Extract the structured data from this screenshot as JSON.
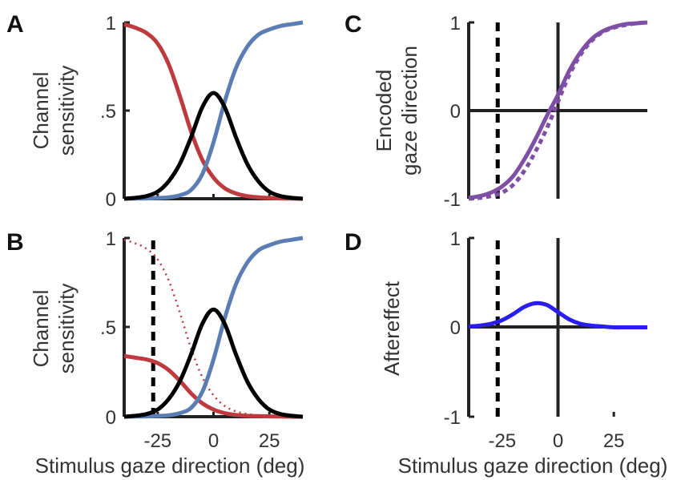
{
  "figure": {
    "panels": {
      "A": {
        "letter": "A",
        "ylabel_line1": "Channel",
        "ylabel_line2": "sensitivity",
        "yticks": [
          "0",
          ".5",
          "1"
        ]
      },
      "B": {
        "letter": "B",
        "ylabel_line1": "Channel",
        "ylabel_line2": "sensitivity",
        "yticks": [
          "0",
          ".5",
          "1"
        ],
        "xticks": [
          "-25",
          "0",
          "25"
        ],
        "xlabel": "Stimulus gaze direction (deg)"
      },
      "C": {
        "letter": "C",
        "ylabel_line1": "Encoded",
        "ylabel_line2": "gaze direction",
        "yticks": [
          "-1",
          "0",
          "1"
        ]
      },
      "D": {
        "letter": "D",
        "ylabel_line1": "Aftereffect",
        "yticks": [
          "-1",
          "0",
          "1"
        ],
        "xticks": [
          "-25",
          "0",
          "25"
        ],
        "xlabel": "Stimulus gaze direction (deg)"
      }
    },
    "colors": {
      "left_channel": "#be3a3e",
      "right_channel": "#5b7db3",
      "center_channel": "#000000",
      "encoded": "#7f4fa6",
      "aftereffect": "#2a1df0",
      "axis": "#222222"
    }
  },
  "chart_data": [
    {
      "panel": "A",
      "type": "line",
      "xlim": [
        -40,
        40
      ],
      "ylim": [
        0,
        1
      ],
      "series": [
        {
          "style": "solid",
          "color": "#be3a3e",
          "x": [
            -40,
            -35,
            -30,
            -25,
            -20,
            -15,
            -10,
            -5,
            0,
            5,
            10,
            15,
            20,
            25,
            30,
            35,
            40
          ],
          "y": [
            0.99,
            0.97,
            0.94,
            0.88,
            0.76,
            0.58,
            0.38,
            0.22,
            0.12,
            0.06,
            0.03,
            0.015,
            0.008,
            0.004,
            0.002,
            0.001,
            0.0
          ]
        },
        {
          "style": "solid",
          "color": "#5b7db3",
          "x": [
            -40,
            -35,
            -30,
            -25,
            -20,
            -15,
            -10,
            -5,
            0,
            5,
            10,
            15,
            20,
            25,
            30,
            35,
            40
          ],
          "y": [
            0.0,
            0.001,
            0.002,
            0.004,
            0.008,
            0.02,
            0.05,
            0.14,
            0.32,
            0.55,
            0.74,
            0.86,
            0.93,
            0.96,
            0.98,
            0.99,
            1.0
          ]
        },
        {
          "style": "solid",
          "color": "#000000",
          "x": [
            -40,
            -35,
            -30,
            -25,
            -20,
            -15,
            -10,
            -5,
            0,
            5,
            10,
            15,
            20,
            25,
            30,
            35,
            40
          ],
          "y": [
            0.0,
            0.005,
            0.015,
            0.04,
            0.1,
            0.2,
            0.35,
            0.52,
            0.6,
            0.52,
            0.35,
            0.2,
            0.1,
            0.04,
            0.015,
            0.005,
            0.0
          ]
        }
      ]
    },
    {
      "panel": "B",
      "type": "line",
      "xlim": [
        -40,
        40
      ],
      "ylim": [
        0,
        1
      ],
      "vline_x": -27,
      "series": [
        {
          "style": "solid",
          "color": "#be3a3e",
          "x": [
            -40,
            -35,
            -30,
            -25,
            -20,
            -15,
            -10,
            -5,
            0,
            5,
            10,
            15,
            20,
            25,
            30,
            35,
            40
          ],
          "y": [
            0.34,
            0.33,
            0.32,
            0.3,
            0.26,
            0.2,
            0.13,
            0.075,
            0.04,
            0.02,
            0.01,
            0.005,
            0.003,
            0.002,
            0.001,
            0.0,
            0.0
          ]
        },
        {
          "style": "dotted",
          "color": "#be3a3e",
          "x": [
            -40,
            -35,
            -30,
            -25,
            -20,
            -15,
            -10,
            -5,
            0,
            5,
            10,
            15,
            20,
            25,
            30,
            35,
            40
          ],
          "y": [
            0.99,
            0.97,
            0.94,
            0.88,
            0.76,
            0.58,
            0.38,
            0.22,
            0.12,
            0.06,
            0.03,
            0.015,
            0.008,
            0.004,
            0.002,
            0.001,
            0.0
          ]
        },
        {
          "style": "solid",
          "color": "#5b7db3",
          "x": [
            -40,
            -35,
            -30,
            -25,
            -20,
            -15,
            -10,
            -5,
            0,
            5,
            10,
            15,
            20,
            25,
            30,
            35,
            40
          ],
          "y": [
            0.0,
            0.001,
            0.002,
            0.004,
            0.008,
            0.02,
            0.05,
            0.14,
            0.32,
            0.55,
            0.74,
            0.86,
            0.93,
            0.96,
            0.98,
            0.99,
            1.0
          ]
        },
        {
          "style": "solid",
          "color": "#000000",
          "x": [
            -40,
            -35,
            -30,
            -25,
            -20,
            -15,
            -10,
            -5,
            0,
            5,
            10,
            15,
            20,
            25,
            30,
            35,
            40
          ],
          "y": [
            0.0,
            0.005,
            0.015,
            0.04,
            0.1,
            0.2,
            0.35,
            0.52,
            0.6,
            0.52,
            0.35,
            0.2,
            0.1,
            0.04,
            0.015,
            0.005,
            0.0
          ]
        }
      ]
    },
    {
      "panel": "C",
      "type": "line",
      "xlim": [
        -40,
        40
      ],
      "ylim": [
        -1,
        1
      ],
      "vline_x": -27,
      "series": [
        {
          "style": "solid",
          "color": "#7f4fa6",
          "x": [
            -40,
            -35,
            -30,
            -25,
            -20,
            -15,
            -10,
            -5,
            0,
            5,
            10,
            15,
            20,
            25,
            30,
            35,
            40
          ],
          "y": [
            -0.99,
            -0.97,
            -0.93,
            -0.86,
            -0.74,
            -0.55,
            -0.32,
            -0.06,
            0.18,
            0.45,
            0.66,
            0.81,
            0.9,
            0.95,
            0.98,
            0.99,
            1.0
          ]
        },
        {
          "style": "dotted",
          "color": "#7f4fa6",
          "x": [
            -40,
            -35,
            -30,
            -25,
            -20,
            -15,
            -10,
            -5,
            0,
            5,
            10,
            15,
            20,
            25,
            30,
            35,
            40
          ],
          "y": [
            -1.0,
            -0.99,
            -0.97,
            -0.93,
            -0.84,
            -0.68,
            -0.46,
            -0.2,
            0.1,
            0.4,
            0.63,
            0.79,
            0.89,
            0.94,
            0.97,
            0.99,
            1.0
          ]
        }
      ]
    },
    {
      "panel": "D",
      "type": "line",
      "xlim": [
        -40,
        40
      ],
      "ylim": [
        -1,
        1
      ],
      "vline_x": -27,
      "series": [
        {
          "style": "solid",
          "color": "#2a1df0",
          "x": [
            -40,
            -35,
            -30,
            -25,
            -20,
            -15,
            -10,
            -5,
            0,
            5,
            10,
            15,
            20,
            25,
            30,
            35,
            40
          ],
          "y": [
            0.01,
            0.02,
            0.04,
            0.08,
            0.15,
            0.23,
            0.27,
            0.25,
            0.17,
            0.09,
            0.04,
            0.02,
            0.01,
            0.0,
            0.0,
            0.0,
            0.0
          ]
        }
      ]
    }
  ]
}
